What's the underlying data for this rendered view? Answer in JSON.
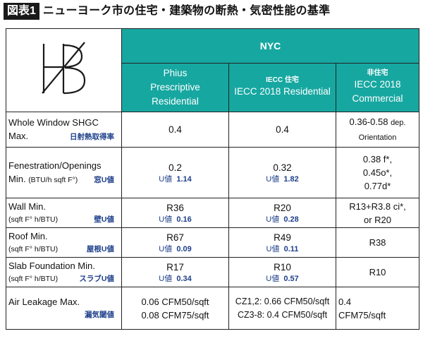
{
  "title": {
    "tag": "図表1",
    "text": "ニューヨーク市の住宅・建築物の断熱・気密性能の基準"
  },
  "logo": {
    "name": "logo"
  },
  "header": {
    "group": "NYC",
    "col1": {
      "lines": [
        "Phius",
        "Prescriptive",
        "Residential"
      ]
    },
    "col2": {
      "small": "IECC 住宅",
      "main": "IECC 2018 Residential"
    },
    "col3": {
      "small": "非住宅",
      "lines": [
        "IECC 2018",
        "Commercial"
      ]
    }
  },
  "rows": [
    {
      "label1": "Whole Window SHGC",
      "label2": "Max.",
      "jp": "日射熱取得率",
      "c1": "0.4",
      "c2": "0.4",
      "c3a": "0.36-0.58",
      "c3b": "dep.",
      "c3c": "Orientation"
    },
    {
      "label1": "Fenestration/Openings",
      "label2": "Min.",
      "unit": "(BTU/h sqft F°)",
      "jp": "窓U値",
      "c1": "0.2",
      "c1u": "U値",
      "c1uv": "1.14",
      "c2": "0.32",
      "c2u": "U値",
      "c2uv": "1.82",
      "c3lines": [
        "0.38 f*,",
        "0.45o*,",
        "0.77d*"
      ]
    },
    {
      "label1": "Wall Min.",
      "unit": "(sqft F° h/BTU)",
      "jp": "壁U値",
      "c1": "R36",
      "c1u": "U値",
      "c1uv": "0.16",
      "c2": "R20",
      "c2u": "U値",
      "c2uv": "0.28",
      "c3lines": [
        "R13+R3.8 ci*,",
        "or R20"
      ]
    },
    {
      "label1": "Roof Min.",
      "unit": "(sqft F° h/BTU)",
      "jp": "屋根U値",
      "c1": "R67",
      "c1u": "U値",
      "c1uv": "0.09",
      "c2": "R49",
      "c2u": "U値",
      "c2uv": "0.11",
      "c3": "R38"
    },
    {
      "label1": "Slab Foundation Min.",
      "unit": "(sqft F° h/BTU)",
      "jp": "スラブU値",
      "c1": "R17",
      "c1u": "U値",
      "c1uv": "0.34",
      "c2": "R10",
      "c2u": "U値",
      "c2uv": "0.57",
      "c3": "R10"
    },
    {
      "label1": "Air Leakage Max.",
      "jp": "漏気閾値",
      "c1lines": [
        "0.06 CFM50/sqft",
        "0.08 CFM75/sqft"
      ],
      "c2lines": [
        "CZ1,2: 0.66 CFM50/sqft",
        "CZ3-8: 0.4 CFM50/sqft"
      ],
      "c3lines": [
        "0.4",
        "CFM75/sqft"
      ]
    }
  ]
}
